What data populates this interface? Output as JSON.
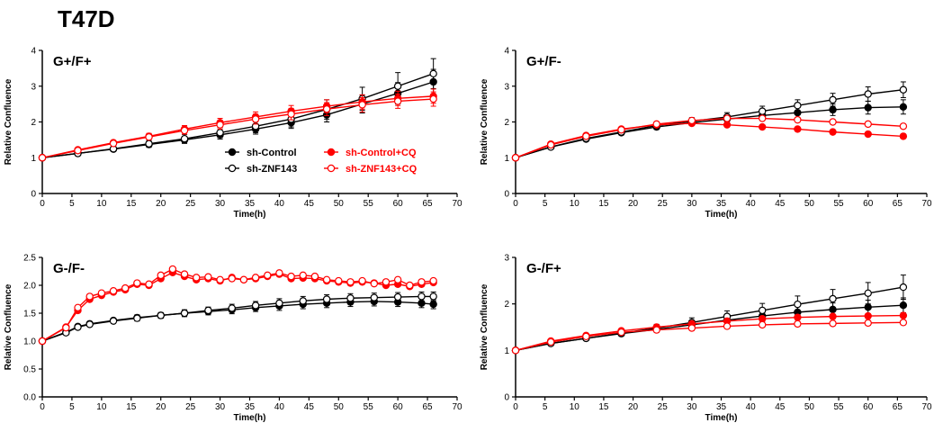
{
  "figure_title": "T47D",
  "colors": {
    "black": "#000000",
    "red": "#ff0000"
  },
  "chart_data": [
    {
      "type": "line",
      "panel_label": "G+/F+",
      "xlabel": "Time(h)",
      "ylabel": "Relative  Confluence",
      "xlim": [
        0,
        70
      ],
      "ylim": [
        0,
        4
      ],
      "xticks": [
        "0",
        "5",
        "10",
        "15",
        "20",
        "25",
        "30",
        "35",
        "40",
        "45",
        "50",
        "55",
        "60",
        "65",
        "70"
      ],
      "yticks": [
        "0",
        "1",
        "2",
        "3",
        "4"
      ],
      "legend": [
        {
          "label": "sh-Control",
          "color": "#000000",
          "marker": "filled"
        },
        {
          "label": "sh-ZNF143",
          "color": "#000000",
          "marker": "open"
        },
        {
          "label": "sh-Control+CQ",
          "color": "#ff0000",
          "marker": "filled"
        },
        {
          "label": "sh-ZNF143+CQ",
          "color": "#ff0000",
          "marker": "open"
        }
      ],
      "series": [
        {
          "color": "#000000",
          "filled": true,
          "x": [
            0,
            6,
            12,
            18,
            24,
            30,
            36,
            42,
            48,
            54,
            60,
            66
          ],
          "y": [
            1,
            1.12,
            1.24,
            1.37,
            1.5,
            1.64,
            1.8,
            1.98,
            2.2,
            2.5,
            2.8,
            3.12
          ],
          "err": [
            0,
            0.05,
            0.06,
            0.08,
            0.1,
            0.12,
            0.14,
            0.16,
            0.2,
            0.25,
            0.3,
            0.35
          ]
        },
        {
          "color": "#000000",
          "filled": false,
          "x": [
            0,
            6,
            12,
            18,
            24,
            30,
            36,
            42,
            48,
            54,
            60,
            66
          ],
          "y": [
            1,
            1.12,
            1.25,
            1.39,
            1.53,
            1.7,
            1.88,
            2.08,
            2.35,
            2.65,
            3.0,
            3.35
          ],
          "err": [
            0,
            0.05,
            0.07,
            0.09,
            0.12,
            0.14,
            0.18,
            0.22,
            0.27,
            0.32,
            0.38,
            0.42
          ]
        },
        {
          "color": "#ff0000",
          "filled": true,
          "x": [
            0,
            6,
            12,
            18,
            24,
            30,
            36,
            42,
            48,
            54,
            60,
            66
          ],
          "y": [
            1,
            1.22,
            1.42,
            1.6,
            1.8,
            1.98,
            2.14,
            2.3,
            2.44,
            2.56,
            2.66,
            2.72
          ],
          "err": [
            0,
            0.04,
            0.06,
            0.08,
            0.1,
            0.12,
            0.14,
            0.16,
            0.18,
            0.2,
            0.2,
            0.2
          ]
        },
        {
          "color": "#ff0000",
          "filled": false,
          "x": [
            0,
            6,
            12,
            18,
            24,
            30,
            36,
            42,
            48,
            54,
            60,
            66
          ],
          "y": [
            1,
            1.2,
            1.4,
            1.58,
            1.76,
            1.92,
            2.08,
            2.22,
            2.36,
            2.48,
            2.58,
            2.64
          ],
          "err": [
            0,
            0.04,
            0.06,
            0.08,
            0.1,
            0.12,
            0.14,
            0.16,
            0.18,
            0.2,
            0.2,
            0.2
          ]
        }
      ]
    },
    {
      "type": "line",
      "panel_label": "G+/F-",
      "xlabel": "Time(h)",
      "ylabel": "Relative  Confluence",
      "xlim": [
        0,
        70
      ],
      "ylim": [
        0,
        4
      ],
      "xticks": [
        "0",
        "5",
        "10",
        "15",
        "20",
        "25",
        "30",
        "35",
        "40",
        "45",
        "50",
        "55",
        "60",
        "65",
        "70"
      ],
      "yticks": [
        "0",
        "1",
        "2",
        "3",
        "4"
      ],
      "series": [
        {
          "color": "#000000",
          "filled": true,
          "x": [
            0,
            6,
            12,
            18,
            24,
            30,
            36,
            42,
            48,
            54,
            60,
            66
          ],
          "y": [
            1,
            1.3,
            1.52,
            1.7,
            1.86,
            1.98,
            2.08,
            2.18,
            2.26,
            2.34,
            2.4,
            2.42
          ],
          "err": [
            0,
            0.04,
            0.05,
            0.06,
            0.07,
            0.08,
            0.1,
            0.12,
            0.14,
            0.16,
            0.18,
            0.2
          ]
        },
        {
          "color": "#000000",
          "filled": false,
          "x": [
            0,
            6,
            12,
            18,
            24,
            30,
            36,
            42,
            48,
            54,
            60,
            66
          ],
          "y": [
            1,
            1.3,
            1.54,
            1.72,
            1.9,
            2.02,
            2.14,
            2.3,
            2.46,
            2.62,
            2.78,
            2.9
          ],
          "err": [
            0,
            0.04,
            0.05,
            0.06,
            0.08,
            0.1,
            0.12,
            0.14,
            0.16,
            0.18,
            0.2,
            0.22
          ]
        },
        {
          "color": "#ff0000",
          "filled": true,
          "x": [
            0,
            6,
            12,
            18,
            24,
            30,
            36,
            42,
            48,
            54,
            60,
            66
          ],
          "y": [
            1,
            1.38,
            1.62,
            1.8,
            1.92,
            1.96,
            1.92,
            1.86,
            1.8,
            1.72,
            1.66,
            1.6
          ],
          "err": [
            0,
            0.03,
            0.04,
            0.04,
            0.05,
            0.05,
            0.05,
            0.05,
            0.05,
            0.05,
            0.05,
            0.05
          ]
        },
        {
          "color": "#ff0000",
          "filled": false,
          "x": [
            0,
            6,
            12,
            18,
            24,
            30,
            36,
            42,
            48,
            54,
            60,
            66
          ],
          "y": [
            1,
            1.36,
            1.6,
            1.78,
            1.94,
            2.04,
            2.1,
            2.1,
            2.06,
            2.0,
            1.94,
            1.88
          ],
          "err": [
            0,
            0.03,
            0.04,
            0.04,
            0.05,
            0.05,
            0.05,
            0.05,
            0.05,
            0.05,
            0.05,
            0.05
          ]
        }
      ]
    },
    {
      "type": "line",
      "panel_label": "G-/F-",
      "xlabel": "Time(h)",
      "ylabel": "Relative  Confluence",
      "xlim": [
        0,
        70
      ],
      "ylim": [
        0,
        2.5
      ],
      "xticks": [
        "0",
        "5",
        "10",
        "15",
        "20",
        "25",
        "30",
        "35",
        "40",
        "45",
        "50",
        "55",
        "60",
        "65",
        "70"
      ],
      "yticks": [
        "0.0",
        "0.5",
        "1.0",
        "1.5",
        "2.0",
        "2.5"
      ],
      "series": [
        {
          "color": "#000000",
          "filled": true,
          "x": [
            0,
            4,
            6,
            8,
            12,
            16,
            20,
            24,
            28,
            32,
            36,
            40,
            44,
            48,
            52,
            56,
            60,
            64,
            66
          ],
          "y": [
            1,
            1.16,
            1.26,
            1.31,
            1.37,
            1.42,
            1.46,
            1.5,
            1.53,
            1.56,
            1.6,
            1.63,
            1.66,
            1.68,
            1.7,
            1.71,
            1.7,
            1.68,
            1.66
          ],
          "err": [
            0,
            0.02,
            0.03,
            0.03,
            0.04,
            0.05,
            0.05,
            0.06,
            0.06,
            0.07,
            0.07,
            0.08,
            0.08,
            0.08,
            0.08,
            0.08,
            0.08,
            0.08,
            0.08
          ]
        },
        {
          "color": "#000000",
          "filled": false,
          "x": [
            0,
            4,
            6,
            8,
            12,
            16,
            20,
            24,
            28,
            32,
            36,
            40,
            44,
            48,
            52,
            56,
            60,
            64,
            66
          ],
          "y": [
            1,
            1.15,
            1.25,
            1.3,
            1.36,
            1.41,
            1.46,
            1.5,
            1.55,
            1.59,
            1.64,
            1.68,
            1.72,
            1.75,
            1.77,
            1.78,
            1.79,
            1.8,
            1.8
          ],
          "err": [
            0,
            0.02,
            0.03,
            0.03,
            0.04,
            0.05,
            0.05,
            0.06,
            0.06,
            0.07,
            0.07,
            0.08,
            0.08,
            0.08,
            0.08,
            0.08,
            0.08,
            0.08,
            0.08
          ]
        },
        {
          "color": "#ff0000",
          "filled": true,
          "x": [
            0,
            4,
            6,
            8,
            10,
            12,
            14,
            16,
            18,
            20,
            22,
            24,
            26,
            28,
            30,
            32,
            34,
            36,
            38,
            40,
            42,
            44,
            46,
            48,
            50,
            52,
            54,
            56,
            58,
            60,
            62,
            64,
            66
          ],
          "y": [
            1,
            1.25,
            1.55,
            1.75,
            1.82,
            1.88,
            1.92,
            2.02,
            2.0,
            2.12,
            2.23,
            2.16,
            2.1,
            2.12,
            2.08,
            2.14,
            2.1,
            2.12,
            2.16,
            2.2,
            2.12,
            2.13,
            2.12,
            2.08,
            2.06,
            2.04,
            2.06,
            2.04,
            2.0,
            2.02,
            1.98,
            2.02,
            2.05
          ],
          "err": []
        },
        {
          "color": "#ff0000",
          "filled": false,
          "x": [
            0,
            4,
            6,
            8,
            10,
            12,
            14,
            16,
            18,
            20,
            22,
            24,
            26,
            28,
            30,
            32,
            34,
            36,
            38,
            40,
            42,
            44,
            46,
            48,
            50,
            52,
            54,
            56,
            58,
            60,
            62,
            64,
            66
          ],
          "y": [
            1,
            1.24,
            1.6,
            1.8,
            1.86,
            1.9,
            1.95,
            2.04,
            2.02,
            2.18,
            2.29,
            2.2,
            2.14,
            2.15,
            2.1,
            2.12,
            2.1,
            2.14,
            2.18,
            2.22,
            2.16,
            2.18,
            2.16,
            2.1,
            2.08,
            2.06,
            2.08,
            2.03,
            2.06,
            2.1,
            2.0,
            2.06,
            2.08
          ],
          "err": []
        }
      ]
    },
    {
      "type": "line",
      "panel_label": "G-/F+",
      "xlabel": "Time(h)",
      "ylabel": "Relative  Confluence",
      "xlim": [
        0,
        70
      ],
      "ylim": [
        0,
        3
      ],
      "xticks": [
        "0",
        "5",
        "10",
        "15",
        "20",
        "25",
        "30",
        "35",
        "40",
        "45",
        "50",
        "55",
        "60",
        "65",
        "70"
      ],
      "yticks": [
        "0",
        "1",
        "2",
        "3"
      ],
      "series": [
        {
          "color": "#000000",
          "filled": true,
          "x": [
            0,
            6,
            12,
            18,
            24,
            30,
            36,
            42,
            48,
            54,
            60,
            66
          ],
          "y": [
            1,
            1.15,
            1.26,
            1.36,
            1.45,
            1.55,
            1.65,
            1.74,
            1.82,
            1.88,
            1.93,
            1.97
          ],
          "err": [
            0,
            0.03,
            0.04,
            0.05,
            0.06,
            0.08,
            0.1,
            0.12,
            0.13,
            0.14,
            0.15,
            0.16
          ]
        },
        {
          "color": "#000000",
          "filled": false,
          "x": [
            0,
            6,
            12,
            18,
            24,
            30,
            36,
            42,
            48,
            54,
            60,
            66
          ],
          "y": [
            1,
            1.15,
            1.26,
            1.37,
            1.48,
            1.6,
            1.73,
            1.86,
            1.99,
            2.11,
            2.23,
            2.36
          ],
          "err": [
            0,
            0.03,
            0.05,
            0.06,
            0.08,
            0.1,
            0.12,
            0.15,
            0.18,
            0.2,
            0.23,
            0.26
          ]
        },
        {
          "color": "#ff0000",
          "filled": true,
          "x": [
            0,
            6,
            12,
            18,
            24,
            30,
            36,
            42,
            48,
            54,
            60,
            66
          ],
          "y": [
            1,
            1.2,
            1.32,
            1.42,
            1.5,
            1.57,
            1.63,
            1.68,
            1.71,
            1.73,
            1.74,
            1.75
          ],
          "err": [
            0,
            0.03,
            0.03,
            0.04,
            0.04,
            0.05,
            0.05,
            0.05,
            0.05,
            0.05,
            0.05,
            0.05
          ]
        },
        {
          "color": "#ff0000",
          "filled": false,
          "x": [
            0,
            6,
            12,
            18,
            24,
            30,
            36,
            42,
            48,
            54,
            60,
            66
          ],
          "y": [
            1,
            1.18,
            1.3,
            1.39,
            1.44,
            1.48,
            1.52,
            1.55,
            1.57,
            1.58,
            1.59,
            1.6
          ],
          "err": [
            0,
            0.03,
            0.03,
            0.04,
            0.04,
            0.05,
            0.05,
            0.05,
            0.05,
            0.05,
            0.05,
            0.05
          ]
        }
      ]
    }
  ]
}
